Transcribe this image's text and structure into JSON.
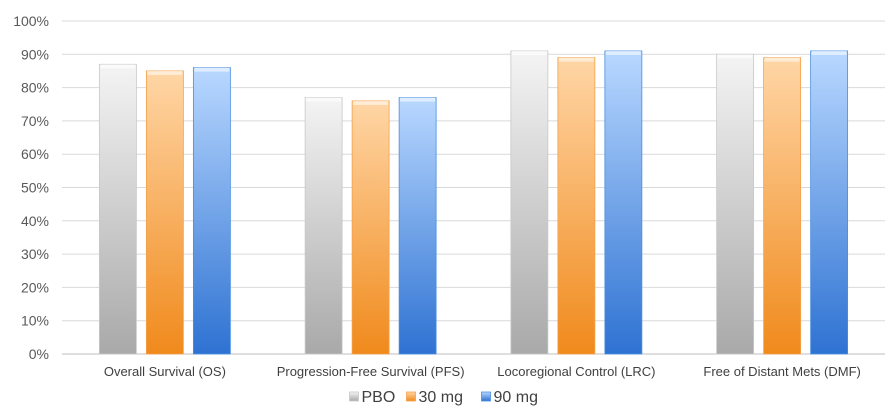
{
  "chart_data": {
    "type": "bar",
    "categories": [
      "Overall Survival (OS)",
      "Progression-Free Survival (PFS)",
      "Locoregional Control (LRC)",
      "Free of Distant Mets (DMF)"
    ],
    "series": [
      {
        "name": "PBO",
        "values": [
          87,
          77,
          91,
          90
        ],
        "color": "#c8c8c8"
      },
      {
        "name": "30 mg",
        "values": [
          85,
          76,
          89,
          89
        ],
        "color": "#f5a04c"
      },
      {
        "name": "90 mg",
        "values": [
          86,
          77,
          91,
          91
        ],
        "color": "#4a8fe2"
      }
    ],
    "yticks": [
      "0%",
      "10%",
      "20%",
      "30%",
      "40%",
      "50%",
      "60%",
      "70%",
      "80%",
      "90%",
      "100%"
    ],
    "ylim": [
      0,
      100
    ],
    "grid": true,
    "legend_position": "bottom",
    "title": "",
    "xlabel": "",
    "ylabel": ""
  }
}
